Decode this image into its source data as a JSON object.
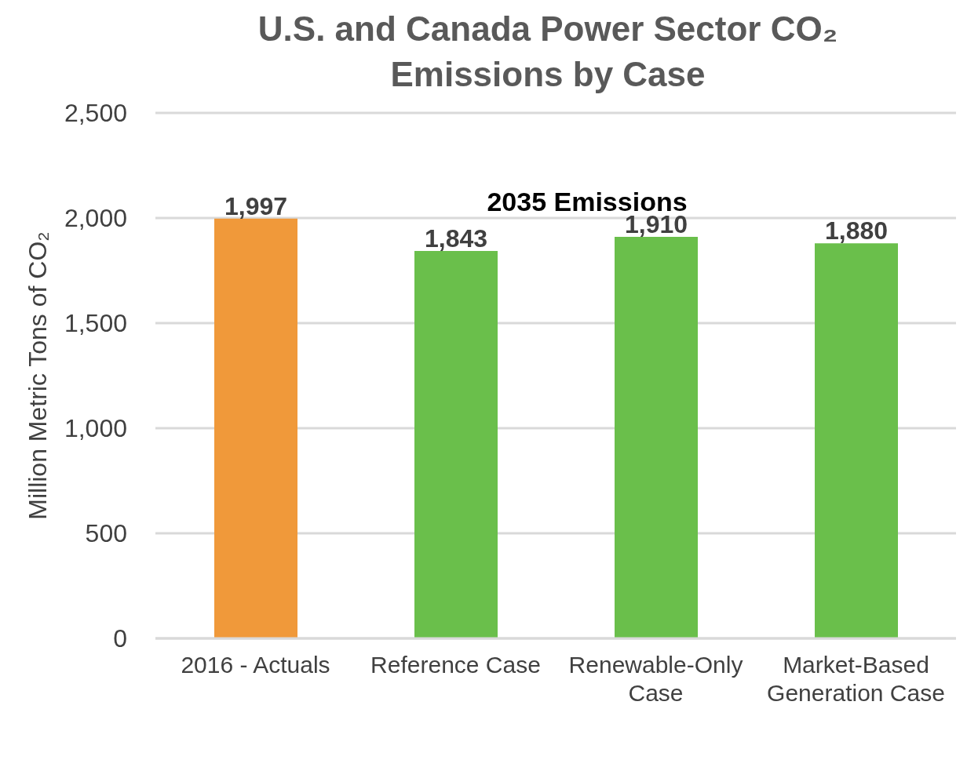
{
  "chart_data": {
    "type": "bar",
    "title": "U.S. and Canada Power Sector CO₂ Emissions by Case",
    "ylabel": "Million Metric Tons of CO₂",
    "annotations": [
      "2035 Emissions"
    ],
    "categories": [
      "2016 - Actuals",
      "Reference Case",
      "Renewable-Only Case",
      "Market-Based Generation Case"
    ],
    "values": [
      1997,
      1843,
      1910,
      1880
    ],
    "value_labels": [
      "1,997",
      "1,843",
      "1,910",
      "1,880"
    ],
    "colors": [
      "#f0993a",
      "#6abf4b",
      "#6abf4b",
      "#6abf4b"
    ],
    "ylim": [
      0,
      2500
    ],
    "yticks": [
      0,
      500,
      {
        "value": 1000,
        "label": "1,000"
      },
      {
        "value": 1500,
        "label": "1,500"
      },
      {
        "value": 2000,
        "label": "2,000"
      },
      {
        "value": 2500,
        "label": "2,500"
      }
    ],
    "grid": "y",
    "legend": false
  }
}
